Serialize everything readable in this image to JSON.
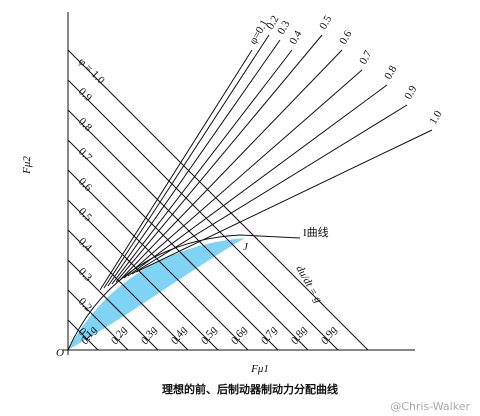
{
  "diagram": {
    "axis_y_label": "Fμ2",
    "axis_x_label": "Fμ1",
    "origin_label": "O",
    "left_labels": [
      "0.1",
      "0.2",
      "0.3",
      "0.4",
      "0.5",
      "0.6",
      "0.7",
      "0.8",
      "0.9",
      "φ = 1.0"
    ],
    "bottom_labels": [
      "0.1g",
      "0.2g",
      "0.3g",
      "0.4g",
      "0.5g",
      "0.6g",
      "0.7g",
      "0.8g",
      "0.9g"
    ],
    "fan_labels": [
      "φ=0.1",
      "0.2",
      "0.3",
      "0.4",
      "0.5",
      "0.6",
      "0.7",
      "0.8",
      "0.9",
      "1.0"
    ],
    "curve_label": "I曲线",
    "point_label": "J",
    "slope_label": "du/dt = g",
    "caption": "理想的前、后制动器制动力分配曲线",
    "watermark": "@Chris-Walker"
  }
}
